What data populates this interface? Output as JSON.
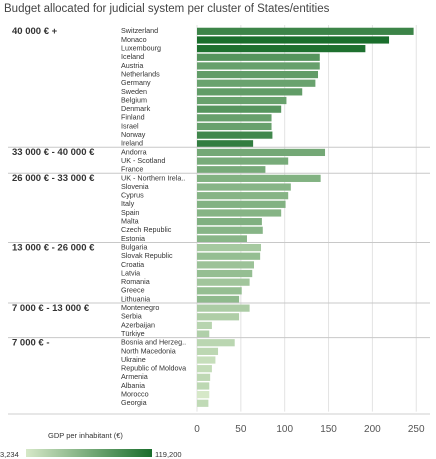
{
  "chart_data": {
    "type": "bar",
    "orientation": "horizontal",
    "title": "Budget allocated for judicial system per cluster of States/entities",
    "xlim": [
      0,
      260
    ],
    "xticks": [
      0,
      50,
      100,
      150,
      200,
      250
    ],
    "grid": true,
    "color_scale": {
      "title": "GDP per inhabitant (€)",
      "min": 3234,
      "max": 119200,
      "min_label": "3,234",
      "max_label": "119,200",
      "color_low": "#d6e8c8",
      "color_high": "#1a6e2c"
    },
    "groups": [
      {
        "label": "40 000 € +",
        "items": [
          {
            "name": "Switzerland",
            "value": 247,
            "gdp": 84000
          },
          {
            "name": "Monaco",
            "value": 219,
            "gdp": 119200
          },
          {
            "name": "Luxembourg",
            "value": 192,
            "gdp": 115000
          },
          {
            "name": "Iceland",
            "value": 140,
            "gdp": 62000
          },
          {
            "name": "Austria",
            "value": 140,
            "gdp": 48000
          },
          {
            "name": "Netherlands",
            "value": 138,
            "gdp": 52000
          },
          {
            "name": "Germany",
            "value": 135,
            "gdp": 46000
          },
          {
            "name": "Sweden",
            "value": 120,
            "gdp": 52000
          },
          {
            "name": "Belgium",
            "value": 102,
            "gdp": 47000
          },
          {
            "name": "Denmark",
            "value": 96,
            "gdp": 61000
          },
          {
            "name": "Finland",
            "value": 85,
            "gdp": 48000
          },
          {
            "name": "Israel",
            "value": 85,
            "gdp": 47000
          },
          {
            "name": "Norway",
            "value": 86,
            "gdp": 80000
          },
          {
            "name": "Ireland",
            "value": 64,
            "gdp": 94000
          }
        ]
      },
      {
        "label": "33 000 € - 40 000 €",
        "items": [
          {
            "name": "Andorra",
            "value": 146,
            "gdp": 39000
          },
          {
            "name": "UK - Scotland",
            "value": 104,
            "gdp": 36000
          },
          {
            "name": "France",
            "value": 78,
            "gdp": 37000
          }
        ]
      },
      {
        "label": "26 000 € - 33 000 €",
        "items": [
          {
            "name": "UK - Northern Irela..",
            "value": 141,
            "gdp": 30000
          },
          {
            "name": "Slovenia",
            "value": 107,
            "gdp": 27000
          },
          {
            "name": "Cyprus",
            "value": 104,
            "gdp": 28000
          },
          {
            "name": "Italy",
            "value": 101,
            "gdp": 30000
          },
          {
            "name": "Spain",
            "value": 96,
            "gdp": 28000
          },
          {
            "name": "Malta",
            "value": 74,
            "gdp": 31000
          },
          {
            "name": "Czech Republic",
            "value": 75,
            "gdp": 27000
          },
          {
            "name": "Estonia",
            "value": 57,
            "gdp": 26000
          }
        ]
      },
      {
        "label": "13 000 € - 26 000 €",
        "items": [
          {
            "name": "Bulgaria",
            "value": 73,
            "gdp": 13000
          },
          {
            "name": "Slovak Republic",
            "value": 72,
            "gdp": 20000
          },
          {
            "name": "Croatia",
            "value": 65,
            "gdp": 17000
          },
          {
            "name": "Latvia",
            "value": 63,
            "gdp": 20000
          },
          {
            "name": "Romania",
            "value": 60,
            "gdp": 15000
          },
          {
            "name": "Greece",
            "value": 51,
            "gdp": 20000
          },
          {
            "name": "Lithuania",
            "value": 48,
            "gdp": 23000
          }
        ]
      },
      {
        "label": "7 000 € - 13 000 €",
        "items": [
          {
            "name": "Montenegro",
            "value": 60,
            "gdp": 11000
          },
          {
            "name": "Serbia",
            "value": 48,
            "gdp": 10000
          },
          {
            "name": "Azerbaijan",
            "value": 17,
            "gdp": 7500
          },
          {
            "name": "Türkiye",
            "value": 14,
            "gdp": 9500
          }
        ]
      },
      {
        "label": "7 000 € -",
        "items": [
          {
            "name": "Bosnia and Herzeg..",
            "value": 43,
            "gdp": 6800
          },
          {
            "name": "North Macedonia",
            "value": 24,
            "gdp": 6500
          },
          {
            "name": "Ukraine",
            "value": 21,
            "gdp": 4500
          },
          {
            "name": "Republic of Moldova",
            "value": 17,
            "gdp": 5000
          },
          {
            "name": "Armenia",
            "value": 15,
            "gdp": 6000
          },
          {
            "name": "Albania",
            "value": 14,
            "gdp": 6200
          },
          {
            "name": "Morocco",
            "value": 14,
            "gdp": 3234
          },
          {
            "name": "Georgia",
            "value": 13,
            "gdp": 5500
          }
        ]
      }
    ]
  }
}
